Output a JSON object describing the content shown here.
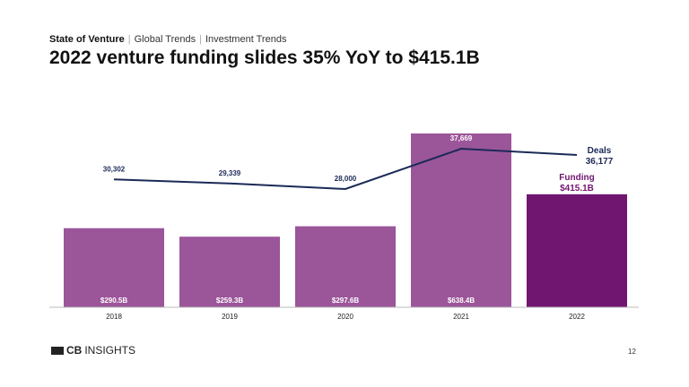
{
  "header": {
    "breadcrumb": [
      "State of Venture",
      "Global Trends",
      "Investment Trends"
    ],
    "title": "2022 venture funding slides 35% YoY to $415.1B"
  },
  "chart_data": {
    "type": "bar",
    "categories": [
      "2018",
      "2019",
      "2020",
      "2021",
      "2022"
    ],
    "series": [
      {
        "name": "Funding",
        "values": [
          290.5,
          259.3,
          297.6,
          638.4,
          415.1
        ],
        "labels": [
          "$290.5B",
          "$259.3B",
          "$297.6B",
          "$638.4B",
          "$415.1B"
        ],
        "color": "#9b5599",
        "highlight_color": "#711670"
      },
      {
        "name": "Deals",
        "type": "line",
        "values": [
          30302,
          29339,
          28000,
          37669,
          36177
        ],
        "labels": [
          "30,302",
          "29,339",
          "28,000",
          "37,669",
          "36,177"
        ],
        "color": "#1b2a57"
      }
    ],
    "legend": {
      "deals_label": "Deals",
      "funding_label": "Funding"
    }
  },
  "footer": {
    "logo": "CBINSIGHTS",
    "page_number": "12"
  }
}
